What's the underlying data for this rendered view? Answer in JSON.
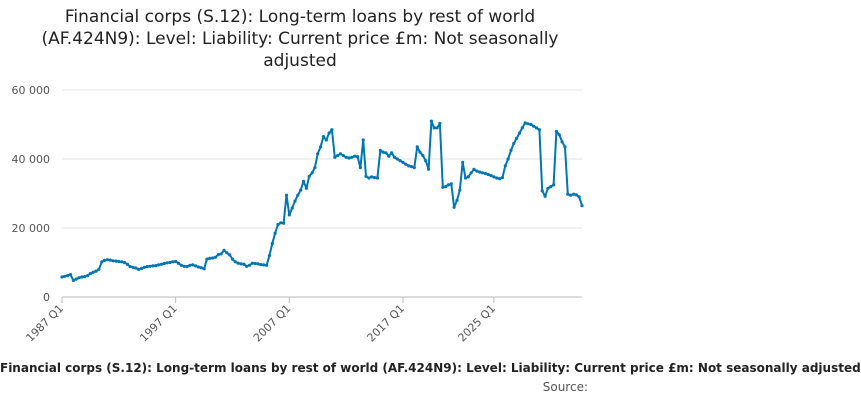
{
  "chart_data": {
    "type": "line",
    "title": "Financial corps (S.12): Long-term loans by rest of world (AF.424N9): Level: Liability: Current price £m: Not seasonally adjusted",
    "series_label": "Financial corps (S.12): Long-term loans by rest of world (AF.424N9): Level: Liability: Current price £m: Not seasonally adjusted",
    "source_label": "Source:",
    "xlabel": "",
    "ylabel": "",
    "ylim": [
      0,
      60000
    ],
    "y_ticks": [
      0,
      20000,
      40000,
      60000
    ],
    "y_tick_labels": [
      "0",
      "20 000",
      "40 000",
      "60 000"
    ],
    "x_tick_labels": [
      "1987 Q1",
      "1997 Q1",
      "2007 Q1",
      "2017 Q1",
      "2025 Q1"
    ],
    "x_tick_positions": [
      0,
      40,
      80,
      120,
      152
    ],
    "grid": true,
    "line_color": "#0075b0",
    "series": [
      {
        "values": [
          5800,
          6000,
          6200,
          6500,
          4800,
          5200,
          5600,
          5800,
          5900,
          6200,
          6800,
          7200,
          7500,
          8000,
          10200,
          10600,
          10800,
          10700,
          10500,
          10400,
          10300,
          10200,
          10000,
          9500,
          8800,
          8600,
          8400,
          8000,
          8300,
          8600,
          8800,
          8900,
          9000,
          9100,
          9300,
          9500,
          9700,
          9900,
          10000,
          10200,
          10300,
          9800,
          9200,
          8900,
          8800,
          9200,
          9300,
          9000,
          8700,
          8500,
          8200,
          11000,
          11200,
          11300,
          11500,
          12300,
          12500,
          13500,
          12800,
          12200,
          11000,
          10200,
          9800,
          9600,
          9500,
          8900,
          9200,
          9800,
          9700,
          9600,
          9400,
          9300,
          9200,
          12000,
          15500,
          18500,
          21000,
          21500,
          21400,
          29500,
          23800,
          25800,
          27800,
          29500,
          31000,
          33500,
          31500,
          35000,
          36000,
          37500,
          41500,
          43500,
          46500,
          45500,
          47500,
          48500,
          40500,
          41000,
          41500,
          41000,
          40500,
          40300,
          40500,
          40800,
          40700,
          37500,
          45500,
          35000,
          34500,
          34800,
          34600,
          34500,
          42500,
          42000,
          41800,
          40800,
          41800,
          40500,
          40000,
          39500,
          39000,
          38500,
          38000,
          37800,
          37500,
          43500,
          42000,
          41000,
          39500,
          37000,
          51000,
          49000,
          49000,
          50300,
          31800,
          32000,
          32500,
          32800,
          26000,
          28000,
          31000,
          39000,
          34500,
          34800,
          36000,
          37000,
          36500,
          36200,
          36000,
          35800,
          35500,
          35200,
          34800,
          34500,
          34300,
          34600,
          38000,
          40000,
          42500,
          44500,
          46000,
          47500,
          49000,
          50500,
          50200,
          50000,
          49500,
          49000,
          48500,
          30800,
          29200,
          31500,
          32000,
          32500,
          48000,
          47000,
          45000,
          43500,
          29800,
          29500,
          29800,
          29600,
          29000,
          26500
        ]
      }
    ]
  }
}
